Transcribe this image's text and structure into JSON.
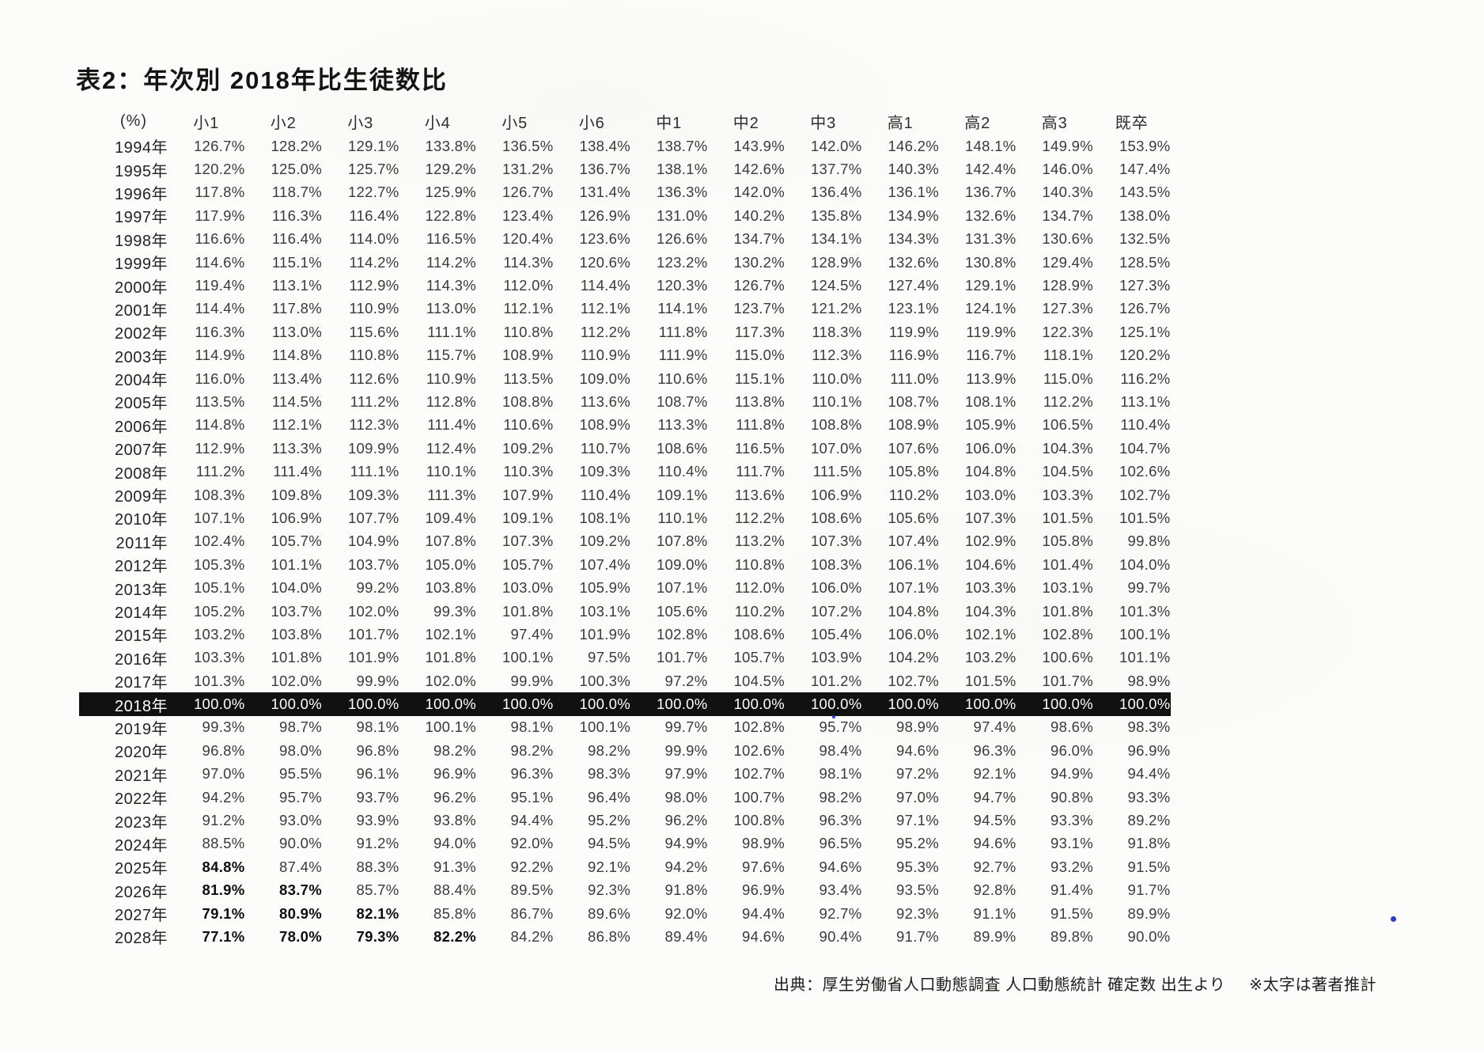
{
  "page": {
    "title": "表2：年次別 2018年比生徒数比",
    "source": "出典：厚生労働省人口動態調査 人口動態統計 確定数 出生より",
    "note": "※太字は著者推計"
  },
  "table": {
    "unit_header": "(%)",
    "columns": [
      "小1",
      "小2",
      "小3",
      "小4",
      "小5",
      "小6",
      "中1",
      "中2",
      "中3",
      "高1",
      "高2",
      "高3",
      "既卒"
    ],
    "rows": [
      {
        "year": "1994年",
        "highlight": false,
        "bold_cols": 0,
        "values": [
          "126.7%",
          "128.2%",
          "129.1%",
          "133.8%",
          "136.5%",
          "138.4%",
          "138.7%",
          "143.9%",
          "142.0%",
          "146.2%",
          "148.1%",
          "149.9%",
          "153.9%"
        ]
      },
      {
        "year": "1995年",
        "highlight": false,
        "bold_cols": 0,
        "values": [
          "120.2%",
          "125.0%",
          "125.7%",
          "129.2%",
          "131.2%",
          "136.7%",
          "138.1%",
          "142.6%",
          "137.7%",
          "140.3%",
          "142.4%",
          "146.0%",
          "147.4%"
        ]
      },
      {
        "year": "1996年",
        "highlight": false,
        "bold_cols": 0,
        "values": [
          "117.8%",
          "118.7%",
          "122.7%",
          "125.9%",
          "126.7%",
          "131.4%",
          "136.3%",
          "142.0%",
          "136.4%",
          "136.1%",
          "136.7%",
          "140.3%",
          "143.5%"
        ]
      },
      {
        "year": "1997年",
        "highlight": false,
        "bold_cols": 0,
        "values": [
          "117.9%",
          "116.3%",
          "116.4%",
          "122.8%",
          "123.4%",
          "126.9%",
          "131.0%",
          "140.2%",
          "135.8%",
          "134.9%",
          "132.6%",
          "134.7%",
          "138.0%"
        ]
      },
      {
        "year": "1998年",
        "highlight": false,
        "bold_cols": 0,
        "values": [
          "116.6%",
          "116.4%",
          "114.0%",
          "116.5%",
          "120.4%",
          "123.6%",
          "126.6%",
          "134.7%",
          "134.1%",
          "134.3%",
          "131.3%",
          "130.6%",
          "132.5%"
        ]
      },
      {
        "year": "1999年",
        "highlight": false,
        "bold_cols": 0,
        "values": [
          "114.6%",
          "115.1%",
          "114.2%",
          "114.2%",
          "114.3%",
          "120.6%",
          "123.2%",
          "130.2%",
          "128.9%",
          "132.6%",
          "130.8%",
          "129.4%",
          "128.5%"
        ]
      },
      {
        "year": "2000年",
        "highlight": false,
        "bold_cols": 0,
        "values": [
          "119.4%",
          "113.1%",
          "112.9%",
          "114.3%",
          "112.0%",
          "114.4%",
          "120.3%",
          "126.7%",
          "124.5%",
          "127.4%",
          "129.1%",
          "128.9%",
          "127.3%"
        ]
      },
      {
        "year": "2001年",
        "highlight": false,
        "bold_cols": 0,
        "values": [
          "114.4%",
          "117.8%",
          "110.9%",
          "113.0%",
          "112.1%",
          "112.1%",
          "114.1%",
          "123.7%",
          "121.2%",
          "123.1%",
          "124.1%",
          "127.3%",
          "126.7%"
        ]
      },
      {
        "year": "2002年",
        "highlight": false,
        "bold_cols": 0,
        "values": [
          "116.3%",
          "113.0%",
          "115.6%",
          "111.1%",
          "110.8%",
          "112.2%",
          "111.8%",
          "117.3%",
          "118.3%",
          "119.9%",
          "119.9%",
          "122.3%",
          "125.1%"
        ]
      },
      {
        "year": "2003年",
        "highlight": false,
        "bold_cols": 0,
        "values": [
          "114.9%",
          "114.8%",
          "110.8%",
          "115.7%",
          "108.9%",
          "110.9%",
          "111.9%",
          "115.0%",
          "112.3%",
          "116.9%",
          "116.7%",
          "118.1%",
          "120.2%"
        ]
      },
      {
        "year": "2004年",
        "highlight": false,
        "bold_cols": 0,
        "values": [
          "116.0%",
          "113.4%",
          "112.6%",
          "110.9%",
          "113.5%",
          "109.0%",
          "110.6%",
          "115.1%",
          "110.0%",
          "111.0%",
          "113.9%",
          "115.0%",
          "116.2%"
        ]
      },
      {
        "year": "2005年",
        "highlight": false,
        "bold_cols": 0,
        "values": [
          "113.5%",
          "114.5%",
          "111.2%",
          "112.8%",
          "108.8%",
          "113.6%",
          "108.7%",
          "113.8%",
          "110.1%",
          "108.7%",
          "108.1%",
          "112.2%",
          "113.1%"
        ]
      },
      {
        "year": "2006年",
        "highlight": false,
        "bold_cols": 0,
        "values": [
          "114.8%",
          "112.1%",
          "112.3%",
          "111.4%",
          "110.6%",
          "108.9%",
          "113.3%",
          "111.8%",
          "108.8%",
          "108.9%",
          "105.9%",
          "106.5%",
          "110.4%"
        ]
      },
      {
        "year": "2007年",
        "highlight": false,
        "bold_cols": 0,
        "values": [
          "112.9%",
          "113.3%",
          "109.9%",
          "112.4%",
          "109.2%",
          "110.7%",
          "108.6%",
          "116.5%",
          "107.0%",
          "107.6%",
          "106.0%",
          "104.3%",
          "104.7%"
        ]
      },
      {
        "year": "2008年",
        "highlight": false,
        "bold_cols": 0,
        "values": [
          "111.2%",
          "111.4%",
          "111.1%",
          "110.1%",
          "110.3%",
          "109.3%",
          "110.4%",
          "111.7%",
          "111.5%",
          "105.8%",
          "104.8%",
          "104.5%",
          "102.6%"
        ]
      },
      {
        "year": "2009年",
        "highlight": false,
        "bold_cols": 0,
        "values": [
          "108.3%",
          "109.8%",
          "109.3%",
          "111.3%",
          "107.9%",
          "110.4%",
          "109.1%",
          "113.6%",
          "106.9%",
          "110.2%",
          "103.0%",
          "103.3%",
          "102.7%"
        ]
      },
      {
        "year": "2010年",
        "highlight": false,
        "bold_cols": 0,
        "values": [
          "107.1%",
          "106.9%",
          "107.7%",
          "109.4%",
          "109.1%",
          "108.1%",
          "110.1%",
          "112.2%",
          "108.6%",
          "105.6%",
          "107.3%",
          "101.5%",
          "101.5%"
        ]
      },
      {
        "year": "2011年",
        "highlight": false,
        "bold_cols": 0,
        "values": [
          "102.4%",
          "105.7%",
          "104.9%",
          "107.8%",
          "107.3%",
          "109.2%",
          "107.8%",
          "113.2%",
          "107.3%",
          "107.4%",
          "102.9%",
          "105.8%",
          "99.8%"
        ]
      },
      {
        "year": "2012年",
        "highlight": false,
        "bold_cols": 0,
        "values": [
          "105.3%",
          "101.1%",
          "103.7%",
          "105.0%",
          "105.7%",
          "107.4%",
          "109.0%",
          "110.8%",
          "108.3%",
          "106.1%",
          "104.6%",
          "101.4%",
          "104.0%"
        ]
      },
      {
        "year": "2013年",
        "highlight": false,
        "bold_cols": 0,
        "values": [
          "105.1%",
          "104.0%",
          "99.2%",
          "103.8%",
          "103.0%",
          "105.9%",
          "107.1%",
          "112.0%",
          "106.0%",
          "107.1%",
          "103.3%",
          "103.1%",
          "99.7%"
        ]
      },
      {
        "year": "2014年",
        "highlight": false,
        "bold_cols": 0,
        "values": [
          "105.2%",
          "103.7%",
          "102.0%",
          "99.3%",
          "101.8%",
          "103.1%",
          "105.6%",
          "110.2%",
          "107.2%",
          "104.8%",
          "104.3%",
          "101.8%",
          "101.3%"
        ]
      },
      {
        "year": "2015年",
        "highlight": false,
        "bold_cols": 0,
        "values": [
          "103.2%",
          "103.8%",
          "101.7%",
          "102.1%",
          "97.4%",
          "101.9%",
          "102.8%",
          "108.6%",
          "105.4%",
          "106.0%",
          "102.1%",
          "102.8%",
          "100.1%"
        ]
      },
      {
        "year": "2016年",
        "highlight": false,
        "bold_cols": 0,
        "values": [
          "103.3%",
          "101.8%",
          "101.9%",
          "101.8%",
          "100.1%",
          "97.5%",
          "101.7%",
          "105.7%",
          "103.9%",
          "104.2%",
          "103.2%",
          "100.6%",
          "101.1%"
        ]
      },
      {
        "year": "2017年",
        "highlight": false,
        "bold_cols": 0,
        "values": [
          "101.3%",
          "102.0%",
          "99.9%",
          "102.0%",
          "99.9%",
          "100.3%",
          "97.2%",
          "104.5%",
          "101.2%",
          "102.7%",
          "101.5%",
          "101.7%",
          "98.9%"
        ]
      },
      {
        "year": "2018年",
        "highlight": true,
        "bold_cols": 0,
        "values": [
          "100.0%",
          "100.0%",
          "100.0%",
          "100.0%",
          "100.0%",
          "100.0%",
          "100.0%",
          "100.0%",
          "100.0%",
          "100.0%",
          "100.0%",
          "100.0%",
          "100.0%"
        ]
      },
      {
        "year": "2019年",
        "highlight": false,
        "bold_cols": 0,
        "values": [
          "99.3%",
          "98.7%",
          "98.1%",
          "100.1%",
          "98.1%",
          "100.1%",
          "99.7%",
          "102.8%",
          "95.7%",
          "98.9%",
          "97.4%",
          "98.6%",
          "98.3%"
        ]
      },
      {
        "year": "2020年",
        "highlight": false,
        "bold_cols": 0,
        "values": [
          "96.8%",
          "98.0%",
          "96.8%",
          "98.2%",
          "98.2%",
          "98.2%",
          "99.9%",
          "102.6%",
          "98.4%",
          "94.6%",
          "96.3%",
          "96.0%",
          "96.9%"
        ]
      },
      {
        "year": "2021年",
        "highlight": false,
        "bold_cols": 0,
        "values": [
          "97.0%",
          "95.5%",
          "96.1%",
          "96.9%",
          "96.3%",
          "98.3%",
          "97.9%",
          "102.7%",
          "98.1%",
          "97.2%",
          "92.1%",
          "94.9%",
          "94.4%"
        ]
      },
      {
        "year": "2022年",
        "highlight": false,
        "bold_cols": 0,
        "values": [
          "94.2%",
          "95.7%",
          "93.7%",
          "96.2%",
          "95.1%",
          "96.4%",
          "98.0%",
          "100.7%",
          "98.2%",
          "97.0%",
          "94.7%",
          "90.8%",
          "93.3%"
        ]
      },
      {
        "year": "2023年",
        "highlight": false,
        "bold_cols": 0,
        "values": [
          "91.2%",
          "93.0%",
          "93.9%",
          "93.8%",
          "94.4%",
          "95.2%",
          "96.2%",
          "100.8%",
          "96.3%",
          "97.1%",
          "94.5%",
          "93.3%",
          "89.2%"
        ]
      },
      {
        "year": "2024年",
        "highlight": false,
        "bold_cols": 0,
        "values": [
          "88.5%",
          "90.0%",
          "91.2%",
          "94.0%",
          "92.0%",
          "94.5%",
          "94.9%",
          "98.9%",
          "96.5%",
          "95.2%",
          "94.6%",
          "93.1%",
          "91.8%"
        ]
      },
      {
        "year": "2025年",
        "highlight": false,
        "bold_cols": 1,
        "values": [
          "84.8%",
          "87.4%",
          "88.3%",
          "91.3%",
          "92.2%",
          "92.1%",
          "94.2%",
          "97.6%",
          "94.6%",
          "95.3%",
          "92.7%",
          "93.2%",
          "91.5%"
        ]
      },
      {
        "year": "2026年",
        "highlight": false,
        "bold_cols": 2,
        "values": [
          "81.9%",
          "83.7%",
          "85.7%",
          "88.4%",
          "89.5%",
          "92.3%",
          "91.8%",
          "96.9%",
          "93.4%",
          "93.5%",
          "92.8%",
          "91.4%",
          "91.7%"
        ]
      },
      {
        "year": "2027年",
        "highlight": false,
        "bold_cols": 3,
        "values": [
          "79.1%",
          "80.9%",
          "82.1%",
          "85.8%",
          "86.7%",
          "89.6%",
          "92.0%",
          "94.4%",
          "92.7%",
          "92.3%",
          "91.1%",
          "91.5%",
          "89.9%"
        ]
      },
      {
        "year": "2028年",
        "highlight": false,
        "bold_cols": 4,
        "values": [
          "77.1%",
          "78.0%",
          "79.3%",
          "82.2%",
          "84.2%",
          "86.8%",
          "89.4%",
          "94.6%",
          "90.4%",
          "91.7%",
          "89.9%",
          "89.8%",
          "90.0%"
        ]
      }
    ]
  },
  "colors": {
    "highlight_bg": "#111111",
    "highlight_text": "#ffffff",
    "body_text": "#3a3a3a",
    "artifact_dot": "#2a3bd0"
  }
}
